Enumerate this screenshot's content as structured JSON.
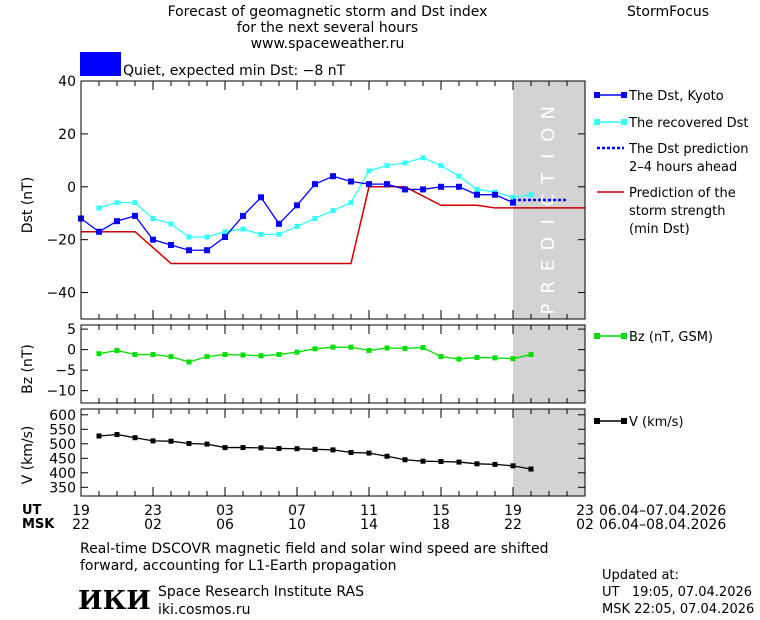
{
  "header": {
    "title_line1": "Forecast of geomagnetic storm and Dst index",
    "title_line2": "for the next several hours",
    "url": "www.spaceweather.ru",
    "brand": "StormFocus"
  },
  "status": {
    "color": "#0000ff",
    "text": "Quiet, expected min Dst: −8 nT"
  },
  "footer": {
    "note_line1": "Real-time DSCOVR magnetic field and solar wind speed are shifted",
    "note_line2": "forward, accounting for L1-Earth propagation",
    "logo_text": "ИКИ",
    "institute": "Space Research Institute RAS",
    "institute_url": "iki.cosmos.ru",
    "updated_label": "Updated at:",
    "updated_ut": "UT   19:05, 07.04.2026",
    "updated_msk": "MSK 22:05, 07.04.2026"
  },
  "time_axis": {
    "ut_label": "UT",
    "msk_label": "MSK",
    "ut_ticks": [
      "19",
      "23",
      "03",
      "07",
      "11",
      "15",
      "19",
      "23"
    ],
    "msk_ticks": [
      "22",
      "02",
      "06",
      "10",
      "14",
      "18",
      "22",
      "02"
    ],
    "ut_range": "06.04–07.04.2026",
    "msk_range": "06.04–08.04.2026",
    "xlim": [
      0,
      28
    ]
  },
  "colors": {
    "dst_kyoto": "#0000ff",
    "dst_recovered": "#33ffff",
    "dst_prediction": "#0000ff",
    "storm_strength": "#cc0000",
    "bz": "#00dd00",
    "v": "#000000",
    "prediction_band": "#d3d3d3"
  },
  "chart_data": [
    {
      "type": "line",
      "ylabel": "Dst (nT)",
      "ylim": [
        -50,
        40
      ],
      "yticks": [
        -40,
        -20,
        0,
        20,
        40
      ],
      "prediction_band": {
        "x_start": 24,
        "x_end": 28,
        "label": "PREDICTION"
      },
      "series": [
        {
          "name": "The Dst, Kyoto",
          "x": [
            0,
            1,
            2,
            3,
            4,
            5,
            6,
            7,
            8,
            9,
            10,
            11,
            12,
            13,
            14,
            15,
            16,
            17,
            18,
            19,
            20,
            21,
            22,
            23,
            24
          ],
          "values": [
            -12,
            -17,
            -13,
            -11,
            -20,
            -22,
            -24,
            -24,
            -19,
            -11,
            -4,
            -14,
            -7,
            1,
            4,
            2,
            1,
            1,
            -1,
            -1,
            0,
            0,
            -3,
            -3,
            -6
          ]
        },
        {
          "name": "The recovered Dst",
          "x": [
            1,
            2,
            3,
            4,
            5,
            6,
            7,
            8,
            9,
            10,
            11,
            12,
            13,
            14,
            15,
            16,
            17,
            18,
            19,
            20,
            21,
            22,
            23,
            24,
            25
          ],
          "values": [
            -8,
            -6,
            -6,
            -12,
            -14,
            -19,
            -19,
            -17,
            -16,
            -18,
            -18,
            -15,
            -12,
            -9,
            -6,
            6,
            8,
            9,
            11,
            8,
            4,
            -1,
            -2,
            -4,
            -3
          ]
        },
        {
          "name": "The Dst prediction\n2–4 hours ahead",
          "x": [
            24,
            25,
            26,
            27
          ],
          "values": [
            -5,
            -5,
            -5,
            -5
          ]
        },
        {
          "name": "Prediction of the\nstorm strength\n(min Dst)",
          "x": [
            0,
            3,
            5,
            15,
            16,
            18,
            20,
            22,
            23,
            28
          ],
          "values": [
            -17,
            -17,
            -29,
            -29,
            0,
            0,
            -7,
            -7,
            -8,
            -8
          ]
        }
      ]
    },
    {
      "type": "line",
      "ylabel": "Bz (nT)",
      "ylim": [
        -13,
        6
      ],
      "yticks": [
        -10,
        -5,
        0,
        5
      ],
      "series": [
        {
          "name": "Bz (nT, GSM)",
          "x": [
            1,
            2,
            3,
            4,
            5,
            6,
            7,
            8,
            9,
            10,
            11,
            12,
            13,
            14,
            15,
            16,
            17,
            18,
            19,
            20,
            21,
            22,
            23,
            24,
            25
          ],
          "values": [
            -1,
            -0.2,
            -1.2,
            -1.2,
            -1.7,
            -3,
            -1.7,
            -1.2,
            -1.3,
            -1.5,
            -1.2,
            -0.6,
            0.2,
            0.6,
            0.6,
            -0.2,
            0.4,
            0.3,
            0.5,
            -1.7,
            -2.3,
            -1.9,
            -2,
            -2.2,
            -1.2
          ]
        }
      ]
    },
    {
      "type": "line",
      "ylabel": "V (km/s)",
      "ylim": [
        320,
        620
      ],
      "yticks": [
        350,
        400,
        450,
        500,
        550,
        600
      ],
      "series": [
        {
          "name": "V (km/s)",
          "x": [
            1,
            2,
            3,
            4,
            5,
            6,
            7,
            8,
            9,
            10,
            11,
            12,
            13,
            14,
            15,
            16,
            17,
            18,
            19,
            20,
            21,
            22,
            23,
            24,
            25
          ],
          "values": [
            527,
            532,
            521,
            510,
            509,
            501,
            499,
            487,
            487,
            486,
            484,
            483,
            481,
            479,
            470,
            468,
            457,
            445,
            440,
            439,
            437,
            431,
            429,
            424,
            413
          ]
        }
      ]
    }
  ]
}
